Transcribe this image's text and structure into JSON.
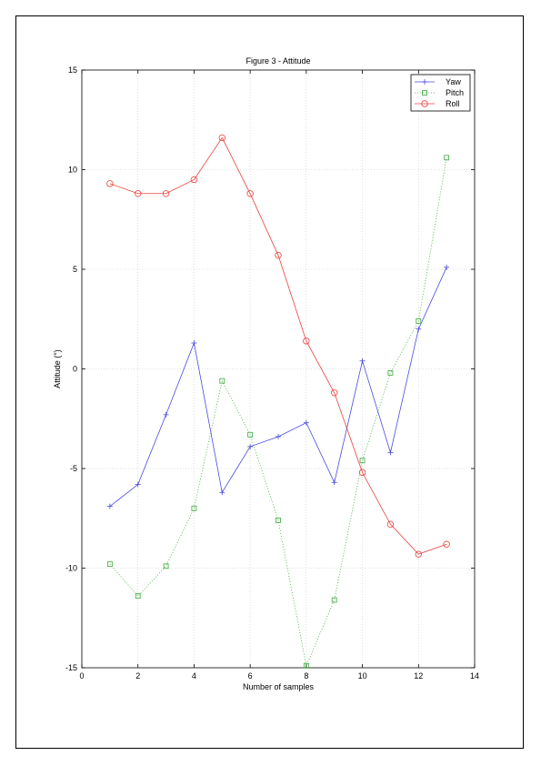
{
  "chart_data": {
    "type": "line",
    "title": "Figure 3 - Attitude",
    "xlabel": "Number of samples",
    "ylabel": "Attitude (°)",
    "xlim": [
      0,
      14
    ],
    "ylim": [
      -15,
      15
    ],
    "xticks": [
      0,
      2,
      4,
      6,
      8,
      10,
      12,
      14
    ],
    "yticks": [
      -15,
      -10,
      -5,
      0,
      5,
      10,
      15
    ],
    "grid": true,
    "legend_position": "top-right",
    "x": [
      1,
      2,
      3,
      4,
      5,
      6,
      7,
      8,
      9,
      10,
      11,
      12,
      13
    ],
    "series": [
      {
        "name": "Yaw",
        "color": "#4a4adf",
        "marker": "plus",
        "line": "solid",
        "values": [
          -6.9,
          -5.8,
          -2.3,
          1.3,
          -6.2,
          -3.9,
          -3.4,
          -2.7,
          -5.7,
          0.4,
          -4.2,
          2.0,
          5.1
        ]
      },
      {
        "name": "Pitch",
        "color": "#3aa83a",
        "marker": "square",
        "line": "dotted",
        "values": [
          -9.8,
          -11.4,
          -9.9,
          -7.0,
          -0.6,
          -3.3,
          -7.6,
          -14.9,
          -11.6,
          -4.6,
          -0.2,
          2.4,
          10.6
        ]
      },
      {
        "name": "Roll",
        "color": "#e8403a",
        "marker": "circle",
        "line": "solid",
        "values": [
          9.3,
          8.8,
          8.8,
          9.5,
          11.6,
          8.8,
          5.7,
          1.4,
          -1.2,
          -5.2,
          -7.8,
          -9.3,
          -8.8
        ]
      }
    ]
  }
}
